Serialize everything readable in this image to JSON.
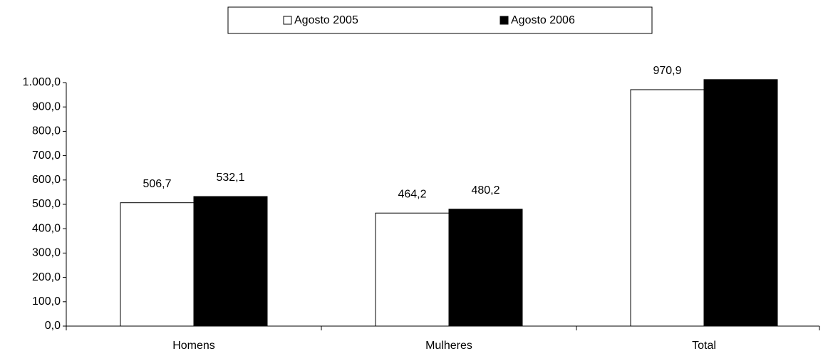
{
  "chart_data": {
    "type": "bar",
    "categories": [
      "Homens",
      "Mulheres",
      "Total"
    ],
    "series": [
      {
        "name": "Agosto 2005",
        "color": "#ffffff",
        "values": [
          506.7,
          464.2,
          970.9
        ],
        "value_labels": [
          "506,7",
          "464,2",
          "970,9"
        ]
      },
      {
        "name": "Agosto 2006",
        "color": "#000000",
        "values": [
          532.1,
          480.2,
          1012.3
        ],
        "value_labels": [
          "532,1",
          "480,2",
          null
        ]
      }
    ],
    "ylim": [
      0,
      1000
    ],
    "yticks": [
      {
        "value": 0,
        "label": "0,0"
      },
      {
        "value": 100,
        "label": "100,0"
      },
      {
        "value": 200,
        "label": "200,0"
      },
      {
        "value": 300,
        "label": "300,0"
      },
      {
        "value": 400,
        "label": "400,0"
      },
      {
        "value": 500,
        "label": "500,0"
      },
      {
        "value": 600,
        "label": "600,0"
      },
      {
        "value": 700,
        "label": "700,0"
      },
      {
        "value": 800,
        "label": "800,0"
      },
      {
        "value": 900,
        "label": "900,0"
      },
      {
        "value": 1000,
        "label": "1.000,0"
      }
    ],
    "legend": "top"
  }
}
